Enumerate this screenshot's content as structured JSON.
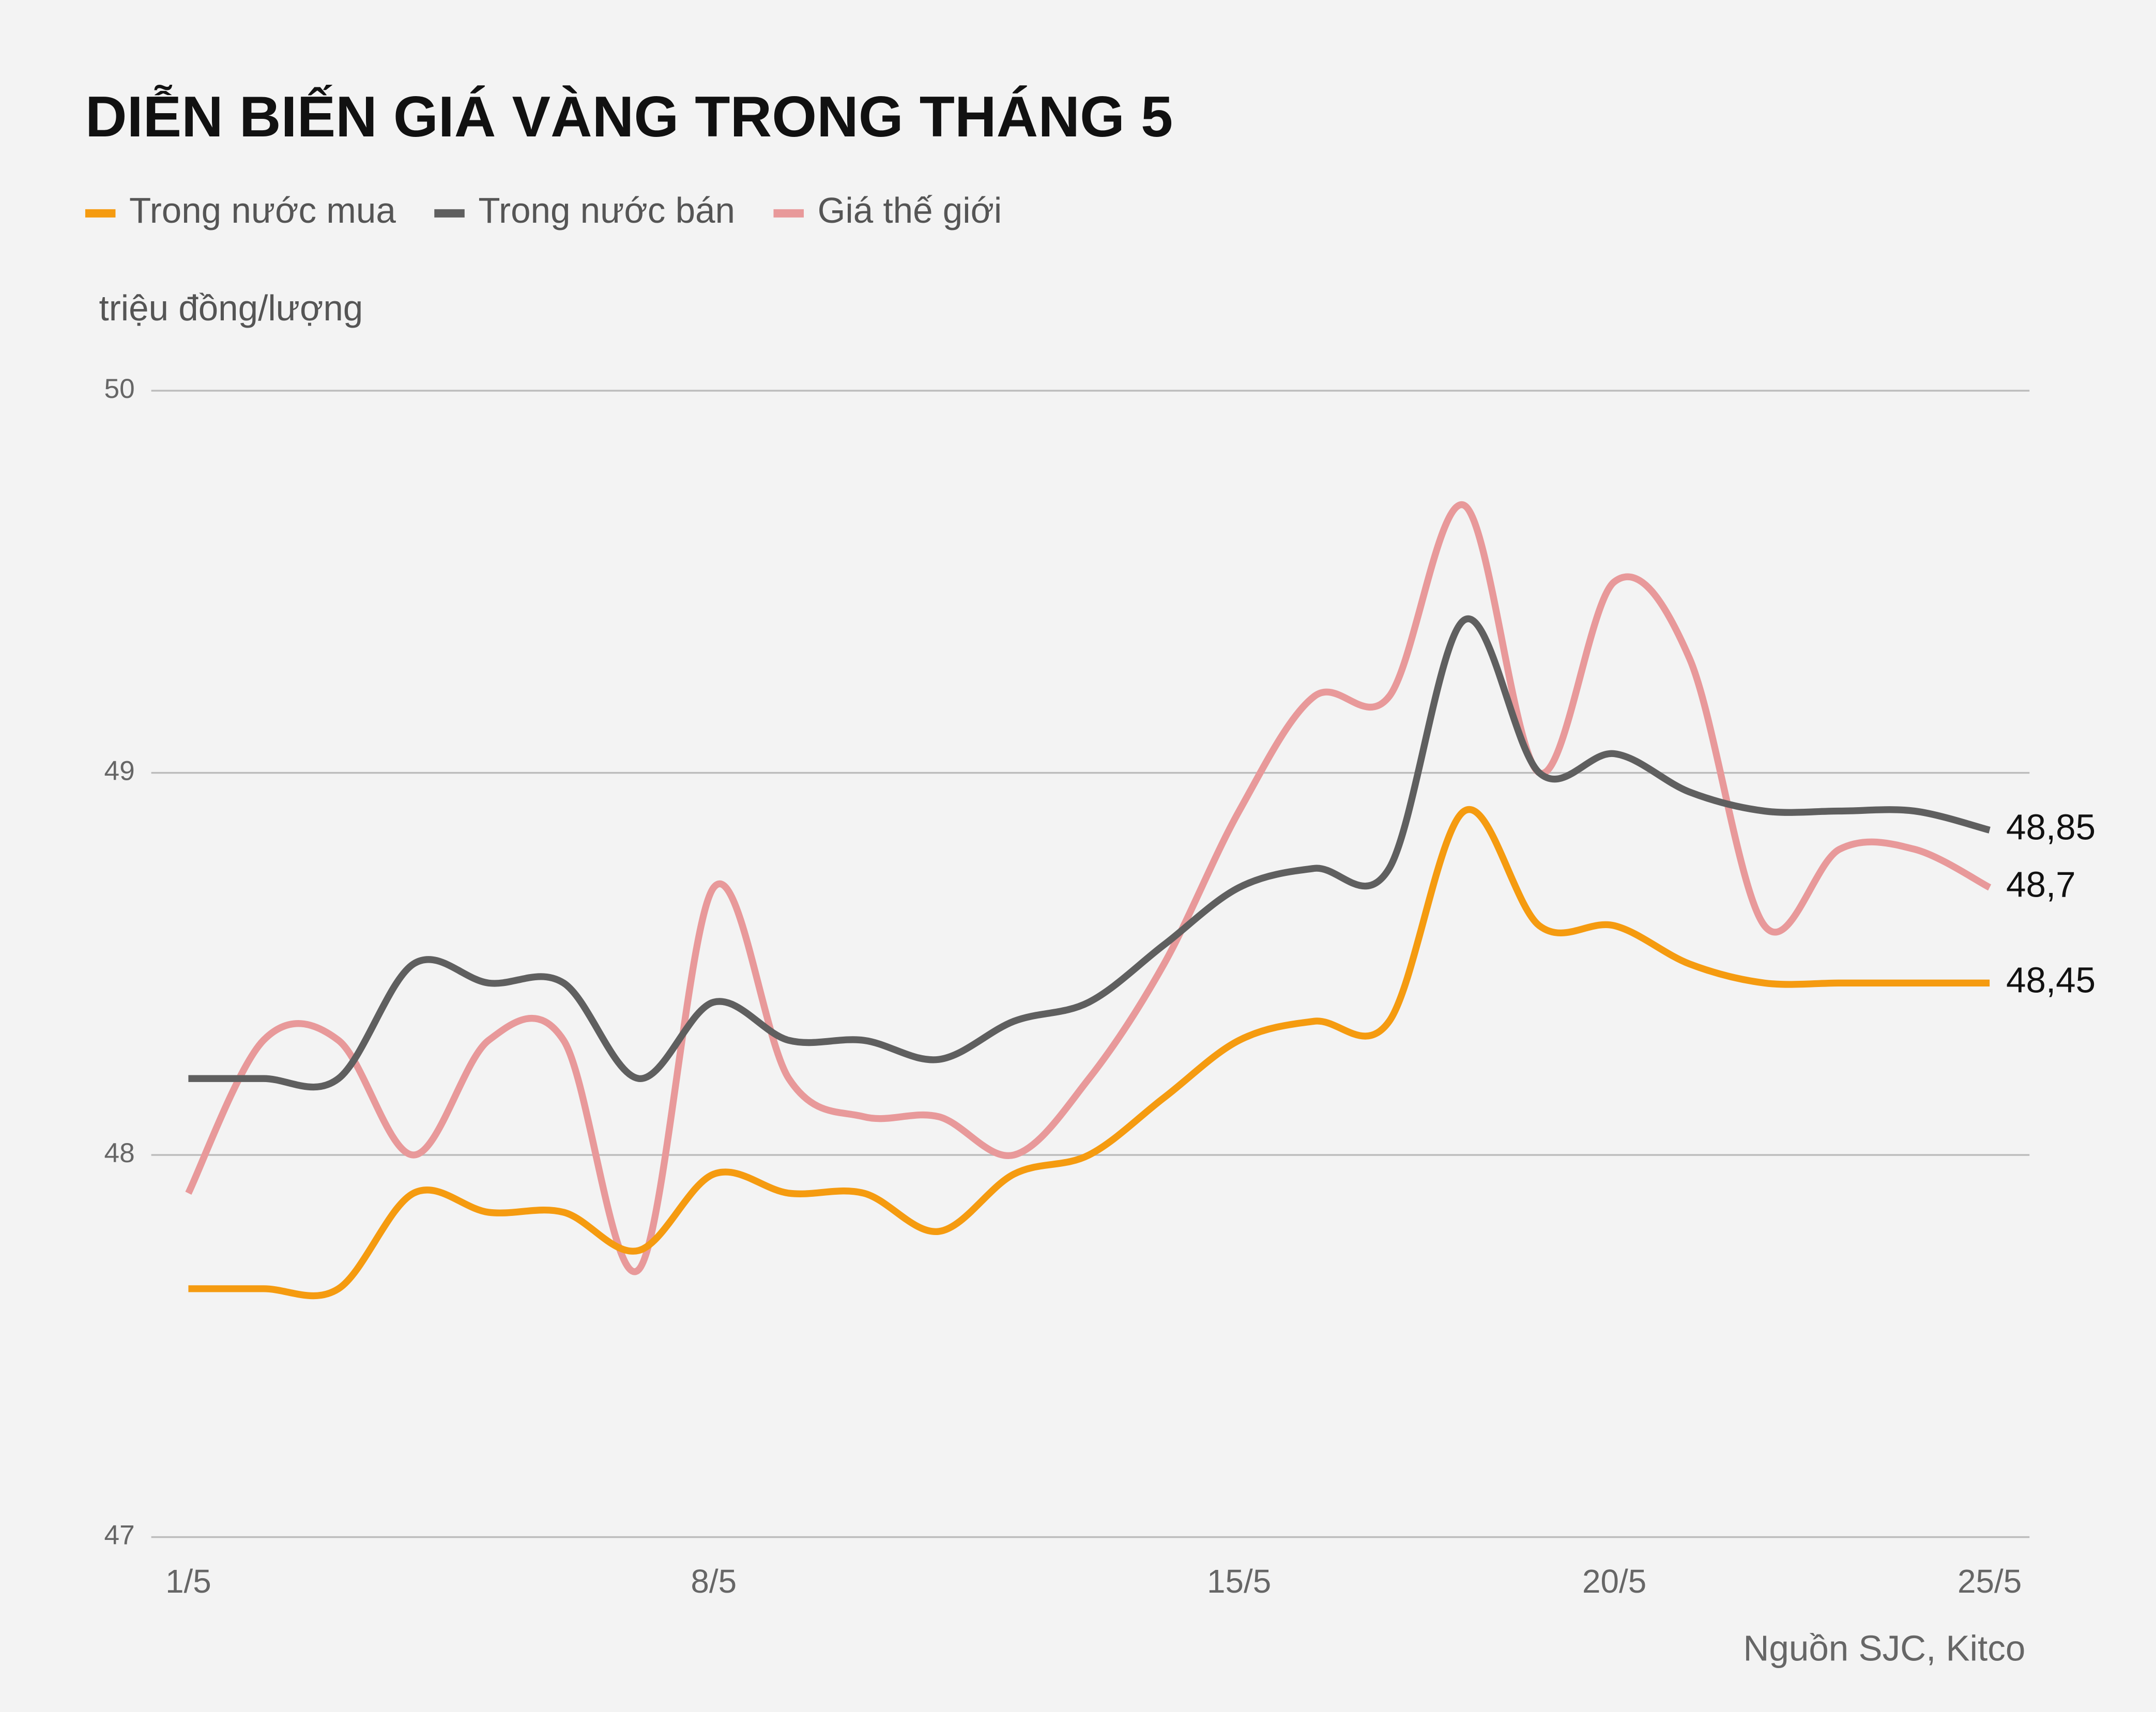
{
  "chart_data": {
    "type": "line",
    "title": "DIỄN BIẾN GIÁ VÀNG TRONG THÁNG 5",
    "y_axis_label": "triệu đồng/lượng",
    "source": "Nguồn SJC, Kitco",
    "categories": [
      "1/5",
      null,
      null,
      null,
      null,
      null,
      null,
      "8/5",
      null,
      null,
      null,
      null,
      null,
      null,
      "15/5",
      null,
      null,
      null,
      null,
      "20/5",
      null,
      null,
      null,
      null,
      "25/5"
    ],
    "series": [
      {
        "name": "Trong nước mua",
        "color": "#f59b10",
        "values": [
          47.65,
          47.65,
          47.65,
          47.9,
          47.85,
          47.85,
          47.75,
          47.95,
          47.9,
          47.9,
          47.8,
          47.95,
          48.0,
          48.15,
          48.3,
          48.35,
          48.35,
          48.9,
          48.6,
          48.6,
          48.5,
          48.45,
          48.45,
          48.45,
          48.45
        ],
        "value_labels": [
          null,
          null,
          null,
          null,
          null,
          null,
          null,
          null,
          null,
          null,
          null,
          null,
          null,
          null,
          null,
          null,
          null,
          null,
          null,
          null,
          null,
          null,
          null,
          null,
          "48,45"
        ]
      },
      {
        "name": "Trong nước bán",
        "color": "#5f5f5f",
        "values": [
          48.2,
          48.2,
          48.2,
          48.5,
          48.45,
          48.45,
          48.2,
          48.4,
          48.3,
          48.3,
          48.25,
          48.35,
          48.4,
          48.55,
          48.7,
          48.75,
          48.75,
          49.4,
          49.0,
          49.05,
          48.95,
          48.9,
          48.9,
          48.9,
          48.85
        ],
        "value_labels": [
          null,
          null,
          null,
          null,
          null,
          null,
          null,
          null,
          null,
          null,
          null,
          null,
          null,
          null,
          null,
          null,
          null,
          null,
          null,
          null,
          null,
          null,
          null,
          null,
          "48,85"
        ]
      },
      {
        "name": "Giá thế giới",
        "color": "#e8999a",
        "values": [
          47.9,
          48.3,
          48.3,
          48.0,
          48.3,
          48.3,
          47.7,
          48.7,
          48.2,
          48.1,
          48.1,
          48.0,
          48.2,
          48.5,
          48.9,
          49.2,
          49.2,
          49.7,
          49.0,
          49.5,
          49.3,
          48.6,
          48.8,
          48.8,
          48.7
        ],
        "value_labels": [
          null,
          null,
          null,
          null,
          null,
          null,
          null,
          null,
          null,
          null,
          null,
          null,
          null,
          null,
          null,
          null,
          null,
          null,
          null,
          null,
          null,
          null,
          null,
          null,
          "48,7"
        ]
      }
    ],
    "ylim": [
      47,
      50
    ],
    "yticks": [
      47,
      48,
      49,
      50
    ],
    "grid": true
  }
}
